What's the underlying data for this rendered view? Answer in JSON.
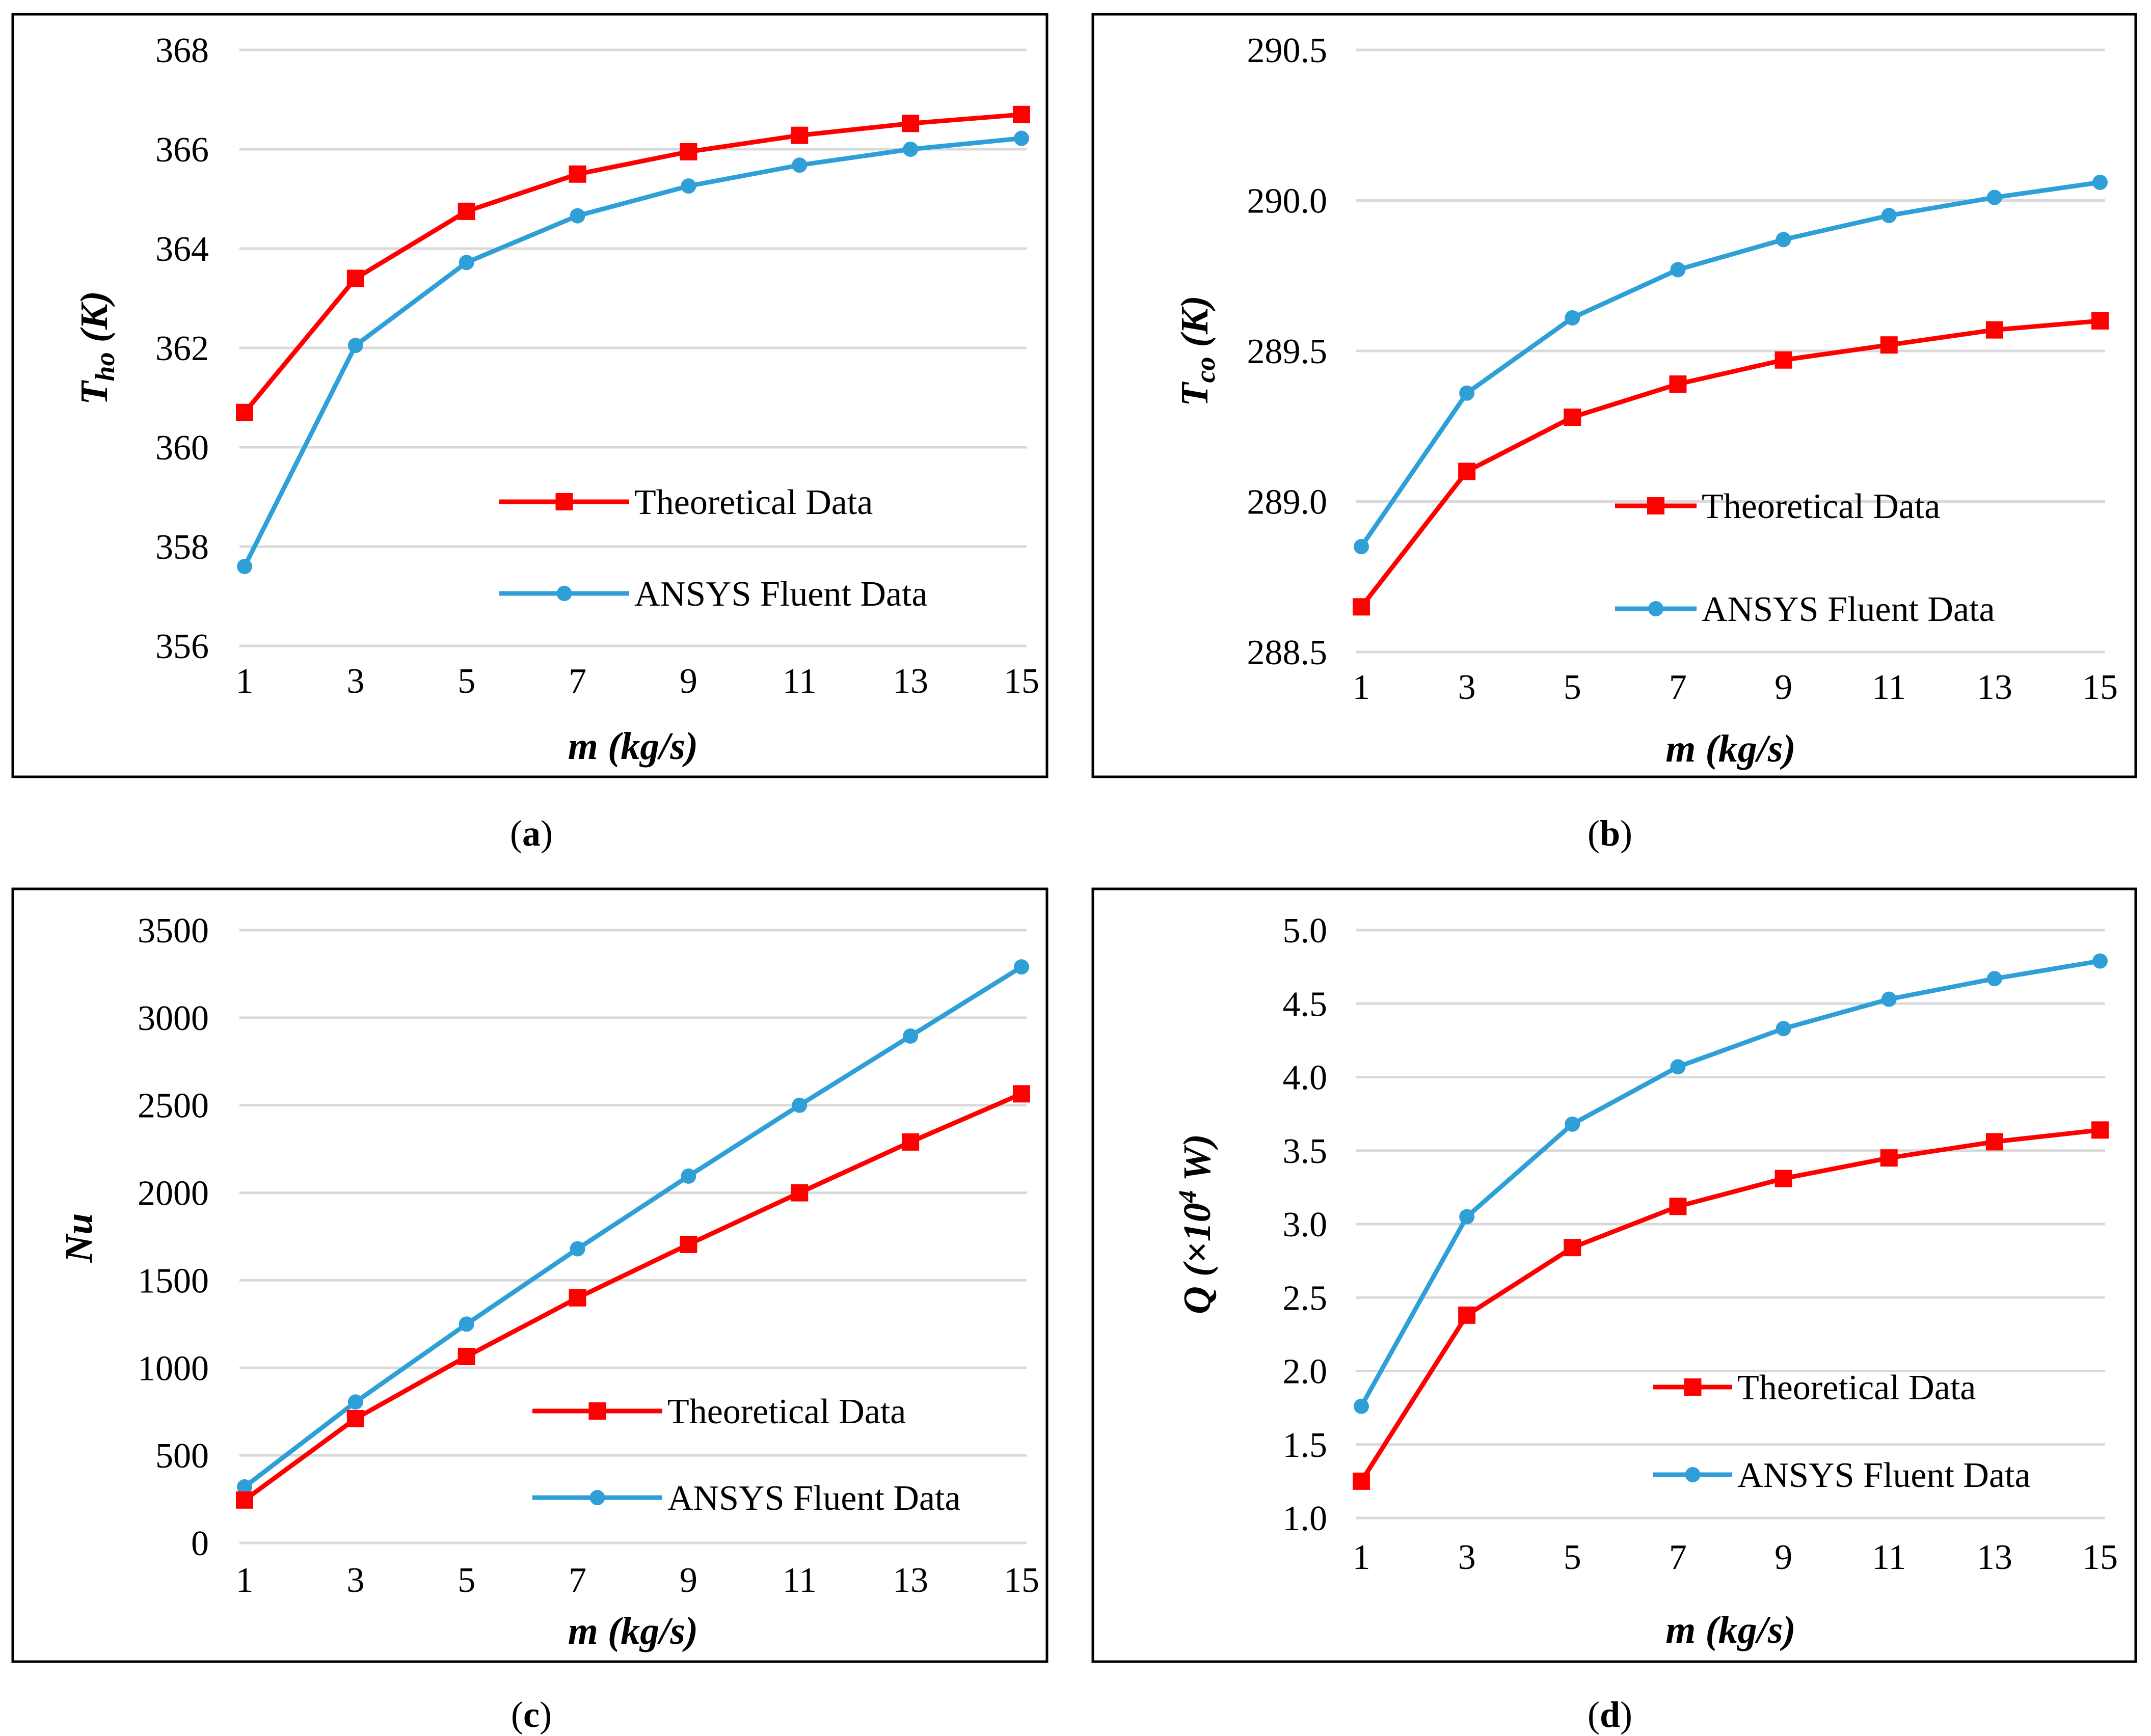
{
  "colors": {
    "theoretical": "#ff0000",
    "ansys": "#2f9fd8",
    "grid": "#d9d9d9",
    "frame": "#000000"
  },
  "chart_data": [
    {
      "type": "line",
      "id": "a",
      "caption_open": "(",
      "caption_letter": "a",
      "caption_close": ")",
      "xlabel": "m (kg/s)",
      "ylabel_main": "T",
      "ylabel_sub": "ho",
      "ylabel_rest": " (K)",
      "x": [
        1,
        3,
        5,
        7,
        9,
        11,
        13,
        15
      ],
      "x_tick_labels": [
        "1",
        "3",
        "5",
        "7",
        "9",
        "11",
        "13",
        "15"
      ],
      "ylim": [
        356,
        368
      ],
      "y_ticks": [
        356,
        358,
        360,
        362,
        364,
        366,
        368
      ],
      "y_tick_labels": [
        "356",
        "358",
        "360",
        "362",
        "364",
        "366",
        "368"
      ],
      "legend_position": "center-right",
      "series": [
        {
          "name": "Theoretical Data",
          "marker": "square",
          "color": "#ff0000",
          "values": [
            360.7,
            363.4,
            364.75,
            365.5,
            365.95,
            366.28,
            366.52,
            366.7
          ]
        },
        {
          "name": "ANSYS Fluent Data",
          "marker": "circle",
          "color": "#2f9fd8",
          "values": [
            357.6,
            362.05,
            363.72,
            364.66,
            365.26,
            365.68,
            366.0,
            366.22
          ]
        }
      ]
    },
    {
      "type": "line",
      "id": "b",
      "caption_open": "(",
      "caption_letter": "b",
      "caption_close": ")",
      "xlabel": "m (kg/s)",
      "ylabel_main": "T",
      "ylabel_sub": "co",
      "ylabel_rest": " (K)",
      "x": [
        1,
        3,
        5,
        7,
        9,
        11,
        13,
        15
      ],
      "x_tick_labels": [
        "1",
        "3",
        "5",
        "7",
        "9",
        "11",
        "13",
        "15"
      ],
      "ylim": [
        288.5,
        290.5
      ],
      "y_ticks": [
        288.5,
        289.0,
        289.5,
        290.0,
        290.5
      ],
      "y_tick_labels": [
        "288.5",
        "289.0",
        "289.5",
        "290.0",
        "290.5"
      ],
      "legend_position": "bottom-right",
      "series": [
        {
          "name": "Theoretical Data",
          "marker": "square",
          "color": "#ff0000",
          "values": [
            288.65,
            289.1,
            289.28,
            289.39,
            289.47,
            289.52,
            289.57,
            289.6
          ]
        },
        {
          "name": "ANSYS Fluent Data",
          "marker": "circle",
          "color": "#2f9fd8",
          "values": [
            288.85,
            289.36,
            289.61,
            289.77,
            289.87,
            289.95,
            290.01,
            290.06
          ]
        }
      ]
    },
    {
      "type": "line",
      "id": "c",
      "caption_open": "(",
      "caption_letter": "c",
      "caption_close": ")",
      "xlabel": "m (kg/s)",
      "ylabel_main": "Nu",
      "ylabel_sub": "",
      "ylabel_rest": "",
      "x": [
        1,
        3,
        5,
        7,
        9,
        11,
        13,
        15
      ],
      "x_tick_labels": [
        "1",
        "3",
        "5",
        "7",
        "9",
        "11",
        "13",
        "15"
      ],
      "ylim": [
        0,
        3500
      ],
      "y_ticks": [
        0,
        500,
        1000,
        1500,
        2000,
        2500,
        3000,
        3500
      ],
      "y_tick_labels": [
        "0",
        "500",
        "1000",
        "1500",
        "2000",
        "2500",
        "3000",
        "3500"
      ],
      "legend_position": "bottom-right",
      "series": [
        {
          "name": "Theoretical Data",
          "marker": "square",
          "color": "#ff0000",
          "values": [
            245,
            710,
            1065,
            1400,
            1705,
            2000,
            2290,
            2565
          ]
        },
        {
          "name": "ANSYS Fluent Data",
          "marker": "circle",
          "color": "#2f9fd8",
          "values": [
            320,
            805,
            1250,
            1680,
            2095,
            2500,
            2895,
            3290
          ]
        }
      ]
    },
    {
      "type": "line",
      "id": "d",
      "caption_open": "(",
      "caption_letter": "d",
      "caption_close": ")",
      "xlabel": "m (kg/s)",
      "ylabel_main": "Q (×10",
      "ylabel_sup": "4",
      "ylabel_rest": " W)",
      "x": [
        1,
        3,
        5,
        7,
        9,
        11,
        13,
        15
      ],
      "x_tick_labels": [
        "1",
        "3",
        "5",
        "7",
        "9",
        "11",
        "13",
        "15"
      ],
      "ylim": [
        1.0,
        5.0
      ],
      "y_ticks": [
        1.0,
        1.5,
        2.0,
        2.5,
        3.0,
        3.5,
        4.0,
        4.5,
        5.0
      ],
      "y_tick_labels": [
        "1.0",
        "1.5",
        "2.0",
        "2.5",
        "3.0",
        "3.5",
        "4.0",
        "4.5",
        "5.0"
      ],
      "legend_position": "bottom-right",
      "series": [
        {
          "name": "Theoretical Data",
          "marker": "square",
          "color": "#ff0000",
          "values": [
            1.25,
            2.38,
            2.84,
            3.12,
            3.31,
            3.45,
            3.56,
            3.64
          ]
        },
        {
          "name": "ANSYS Fluent Data",
          "marker": "circle",
          "color": "#2f9fd8",
          "values": [
            1.76,
            3.05,
            3.68,
            4.07,
            4.33,
            4.53,
            4.67,
            4.79
          ]
        }
      ]
    }
  ]
}
